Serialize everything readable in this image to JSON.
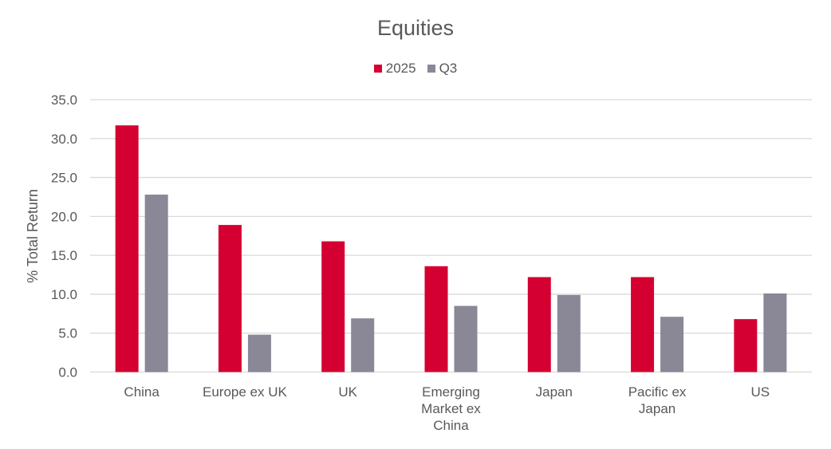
{
  "chart_data": {
    "type": "bar",
    "title": "Equities",
    "xlabel": "",
    "ylabel": "% Total Return",
    "ylim": [
      0,
      35
    ],
    "yticks": [
      "0.0",
      "5.0",
      "10.0",
      "15.0",
      "20.0",
      "25.0",
      "30.0",
      "35.0"
    ],
    "grid": true,
    "legend_position": "top",
    "categories": [
      "China",
      "Europe ex UK",
      "UK",
      "Emerging Market ex China",
      "Japan",
      "Pacific ex Japan",
      "US"
    ],
    "category_lines": [
      [
        "China"
      ],
      [
        "Europe ex UK"
      ],
      [
        "UK"
      ],
      [
        "Emerging",
        "Market ex",
        "China"
      ],
      [
        "Japan"
      ],
      [
        "Pacific ex",
        "Japan"
      ],
      [
        "US"
      ]
    ],
    "series": [
      {
        "name": "2025",
        "color": "#D50032",
        "values": [
          31.7,
          18.9,
          16.8,
          13.6,
          12.2,
          12.2,
          6.8
        ]
      },
      {
        "name": "Q3",
        "color": "#8A8797",
        "values": [
          22.8,
          4.8,
          6.9,
          8.5,
          9.9,
          7.1,
          10.1
        ]
      }
    ]
  }
}
